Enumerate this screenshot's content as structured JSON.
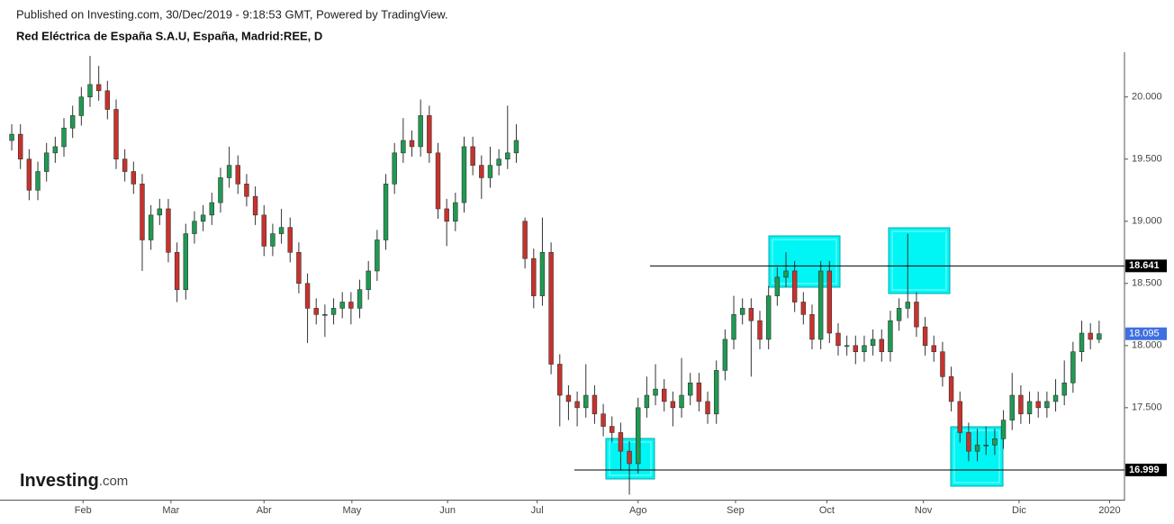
{
  "chart_data": {
    "type": "candlestick",
    "published": "Published on Investing.com, 30/Dec/2019 - 9:18:53 GMT, Powered by TradingView.",
    "title": "Red Eléctrica de España S.A.U, España, Madrid:REE, D",
    "logo": {
      "name": "Investing",
      "suffix": ".com"
    },
    "up_color": "#1f9a52",
    "down_color": "#c8322c",
    "level_color": "#000000",
    "last_color": "#3f6fe0",
    "ylim": [
      16.76,
      20.36
    ],
    "yticks": [
      {
        "value": 17.5,
        "label": "17.500"
      },
      {
        "value": 18,
        "label": "18.000"
      },
      {
        "value": 18.5,
        "label": "18.500"
      },
      {
        "value": 19,
        "label": "19.000"
      },
      {
        "value": 19.5,
        "label": "19.500"
      },
      {
        "value": 20,
        "label": "20.000"
      }
    ],
    "xlim": [
      -1.35,
      127.5
    ],
    "xticks": [
      {
        "value": 8.2,
        "label": "Feb"
      },
      {
        "value": 18.3,
        "label": "Mar"
      },
      {
        "value": 29,
        "label": "Abr"
      },
      {
        "value": 39.1,
        "label": "May"
      },
      {
        "value": 50.1,
        "label": "Jun"
      },
      {
        "value": 60.4,
        "label": "Jul"
      },
      {
        "value": 72,
        "label": "Ago"
      },
      {
        "value": 83.2,
        "label": "Sep"
      },
      {
        "value": 93.7,
        "label": "Oct"
      },
      {
        "value": 104.8,
        "label": "Nov"
      },
      {
        "value": 115.8,
        "label": "Dic"
      },
      {
        "value": 126.2,
        "label": "2020"
      }
    ],
    "levels": [
      18.641,
      16.999
    ],
    "candles": [
      [
        19.65,
        19.78,
        19.57,
        19.7
      ],
      [
        19.7,
        19.78,
        19.42,
        19.5
      ],
      [
        19.5,
        19.58,
        19.17,
        19.25
      ],
      [
        19.25,
        19.48,
        19.17,
        19.4
      ],
      [
        19.4,
        19.63,
        19.32,
        19.55
      ],
      [
        19.55,
        19.68,
        19.47,
        19.6
      ],
      [
        19.6,
        19.83,
        19.52,
        19.75
      ],
      [
        19.75,
        19.93,
        19.67,
        19.85
      ],
      [
        19.85,
        20.08,
        19.77,
        20.0
      ],
      [
        20.0,
        20.33,
        19.92,
        20.1
      ],
      [
        20.1,
        20.25,
        19.97,
        20.05
      ],
      [
        20.05,
        20.13,
        19.82,
        19.9
      ],
      [
        19.9,
        19.98,
        19.42,
        19.5
      ],
      [
        19.5,
        19.58,
        19.32,
        19.4
      ],
      [
        19.4,
        19.48,
        19.22,
        19.3
      ],
      [
        19.3,
        19.38,
        18.6,
        18.85
      ],
      [
        18.85,
        19.13,
        18.77,
        19.05
      ],
      [
        19.05,
        19.18,
        18.97,
        19.1
      ],
      [
        19.1,
        19.18,
        18.67,
        18.75
      ],
      [
        18.75,
        18.83,
        18.35,
        18.45
      ],
      [
        18.45,
        18.98,
        18.37,
        18.9
      ],
      [
        18.9,
        19.08,
        18.82,
        19.0
      ],
      [
        19.0,
        19.13,
        18.92,
        19.05
      ],
      [
        19.05,
        19.23,
        18.97,
        19.15
      ],
      [
        19.15,
        19.43,
        19.07,
        19.35
      ],
      [
        19.35,
        19.6,
        19.27,
        19.45
      ],
      [
        19.45,
        19.53,
        19.22,
        19.3
      ],
      [
        19.3,
        19.38,
        19.12,
        19.2
      ],
      [
        19.2,
        19.28,
        18.97,
        19.05
      ],
      [
        19.05,
        19.13,
        18.72,
        18.8
      ],
      [
        18.8,
        18.98,
        18.72,
        18.9
      ],
      [
        18.9,
        19.1,
        18.82,
        18.95
      ],
      [
        18.95,
        19.03,
        18.67,
        18.75
      ],
      [
        18.75,
        18.83,
        18.42,
        18.5
      ],
      [
        18.5,
        18.58,
        18.02,
        18.3
      ],
      [
        18.3,
        18.38,
        18.17,
        18.25
      ],
      [
        18.25,
        18.33,
        18.07,
        18.25
      ],
      [
        18.25,
        18.38,
        18.17,
        18.3
      ],
      [
        18.3,
        18.43,
        18.22,
        18.35
      ],
      [
        18.35,
        18.43,
        18.17,
        18.3
      ],
      [
        18.3,
        18.53,
        18.22,
        18.45
      ],
      [
        18.45,
        18.68,
        18.37,
        18.6
      ],
      [
        18.6,
        18.93,
        18.52,
        18.85
      ],
      [
        18.85,
        19.38,
        18.77,
        19.3
      ],
      [
        19.3,
        19.63,
        19.22,
        19.55
      ],
      [
        19.55,
        19.83,
        19.47,
        19.65
      ],
      [
        19.65,
        19.73,
        19.52,
        19.6
      ],
      [
        19.6,
        19.98,
        19.52,
        19.85
      ],
      [
        19.85,
        19.93,
        19.47,
        19.55
      ],
      [
        19.55,
        19.63,
        19.02,
        19.1
      ],
      [
        19.1,
        19.18,
        18.8,
        19.0
      ],
      [
        19.0,
        19.23,
        18.92,
        19.15
      ],
      [
        19.15,
        19.68,
        19.07,
        19.6
      ],
      [
        19.6,
        19.68,
        19.37,
        19.45
      ],
      [
        19.45,
        19.53,
        19.18,
        19.35
      ],
      [
        19.35,
        19.6,
        19.27,
        19.45
      ],
      [
        19.45,
        19.58,
        19.37,
        19.5
      ],
      [
        19.5,
        19.93,
        19.42,
        19.55
      ],
      [
        19.55,
        19.78,
        19.47,
        19.65
      ],
      [
        19.0,
        19.03,
        18.62,
        18.7
      ],
      [
        18.7,
        18.78,
        18.3,
        18.4
      ],
      [
        18.4,
        19.03,
        18.32,
        18.75
      ],
      [
        18.75,
        18.83,
        17.77,
        17.85
      ],
      [
        17.85,
        17.93,
        17.35,
        17.6
      ],
      [
        17.6,
        17.68,
        17.4,
        17.55
      ],
      [
        17.55,
        17.63,
        17.35,
        17.5
      ],
      [
        17.5,
        17.85,
        17.42,
        17.6
      ],
      [
        17.6,
        17.68,
        17.37,
        17.45
      ],
      [
        17.45,
        17.53,
        17.27,
        17.35
      ],
      [
        17.35,
        17.43,
        17.22,
        17.3
      ],
      [
        17.3,
        17.38,
        17.0,
        17.15
      ],
      [
        17.15,
        17.23,
        16.8,
        17.05
      ],
      [
        17.05,
        17.58,
        16.97,
        17.5
      ],
      [
        17.5,
        17.75,
        17.42,
        17.6
      ],
      [
        17.6,
        17.85,
        17.52,
        17.65
      ],
      [
        17.65,
        17.73,
        17.47,
        17.55
      ],
      [
        17.55,
        17.63,
        17.35,
        17.5
      ],
      [
        17.5,
        17.9,
        17.42,
        17.6
      ],
      [
        17.6,
        17.78,
        17.52,
        17.7
      ],
      [
        17.7,
        17.78,
        17.47,
        17.55
      ],
      [
        17.55,
        17.63,
        17.37,
        17.45
      ],
      [
        17.45,
        17.88,
        17.37,
        17.8
      ],
      [
        17.8,
        18.13,
        17.72,
        18.05
      ],
      [
        18.05,
        18.4,
        17.97,
        18.25
      ],
      [
        18.25,
        18.38,
        18.17,
        18.3
      ],
      [
        18.3,
        18.38,
        17.75,
        18.2
      ],
      [
        18.2,
        18.28,
        17.97,
        18.05
      ],
      [
        18.05,
        18.48,
        17.97,
        18.4
      ],
      [
        18.4,
        18.63,
        18.32,
        18.55
      ],
      [
        18.55,
        18.75,
        18.47,
        18.6
      ],
      [
        18.6,
        18.68,
        18.27,
        18.35
      ],
      [
        18.35,
        18.43,
        18.17,
        18.25
      ],
      [
        18.25,
        18.33,
        17.97,
        18.05
      ],
      [
        18.05,
        18.68,
        17.97,
        18.6
      ],
      [
        18.6,
        18.68,
        18.02,
        18.1
      ],
      [
        18.1,
        18.18,
        17.92,
        18.0
      ],
      [
        18.0,
        18.08,
        17.92,
        18.0
      ],
      [
        18.0,
        18.08,
        17.85,
        17.95
      ],
      [
        17.95,
        18.08,
        17.87,
        18.0
      ],
      [
        18.0,
        18.13,
        17.92,
        18.05
      ],
      [
        18.05,
        18.13,
        17.87,
        17.95
      ],
      [
        17.95,
        18.28,
        17.87,
        18.2
      ],
      [
        18.2,
        18.38,
        18.12,
        18.3
      ],
      [
        18.3,
        18.9,
        18.22,
        18.35
      ],
      [
        18.35,
        18.43,
        18.07,
        18.15
      ],
      [
        18.15,
        18.23,
        17.92,
        18.0
      ],
      [
        18.0,
        18.08,
        17.87,
        17.95
      ],
      [
        17.95,
        18.03,
        17.67,
        17.75
      ],
      [
        17.75,
        17.83,
        17.47,
        17.55
      ],
      [
        17.55,
        17.63,
        17.22,
        17.3
      ],
      [
        17.3,
        17.38,
        17.07,
        17.15
      ],
      [
        17.15,
        17.33,
        17.07,
        17.2
      ],
      [
        17.2,
        17.35,
        17.12,
        17.2
      ],
      [
        17.2,
        17.33,
        17.12,
        17.25
      ],
      [
        17.25,
        17.48,
        17.17,
        17.4
      ],
      [
        17.4,
        17.78,
        17.32,
        17.6
      ],
      [
        17.6,
        17.68,
        17.37,
        17.45
      ],
      [
        17.45,
        17.63,
        17.37,
        17.55
      ],
      [
        17.55,
        17.63,
        17.42,
        17.5
      ],
      [
        17.5,
        17.63,
        17.42,
        17.55
      ],
      [
        17.55,
        17.73,
        17.47,
        17.6
      ],
      [
        17.6,
        17.88,
        17.52,
        17.7
      ],
      [
        17.7,
        18.03,
        17.62,
        17.95
      ],
      [
        17.95,
        18.2,
        17.87,
        18.1
      ],
      [
        18.1,
        18.18,
        17.97,
        18.05
      ],
      [
        18.05,
        18.2,
        18.02,
        18.095
      ]
    ]
  }
}
